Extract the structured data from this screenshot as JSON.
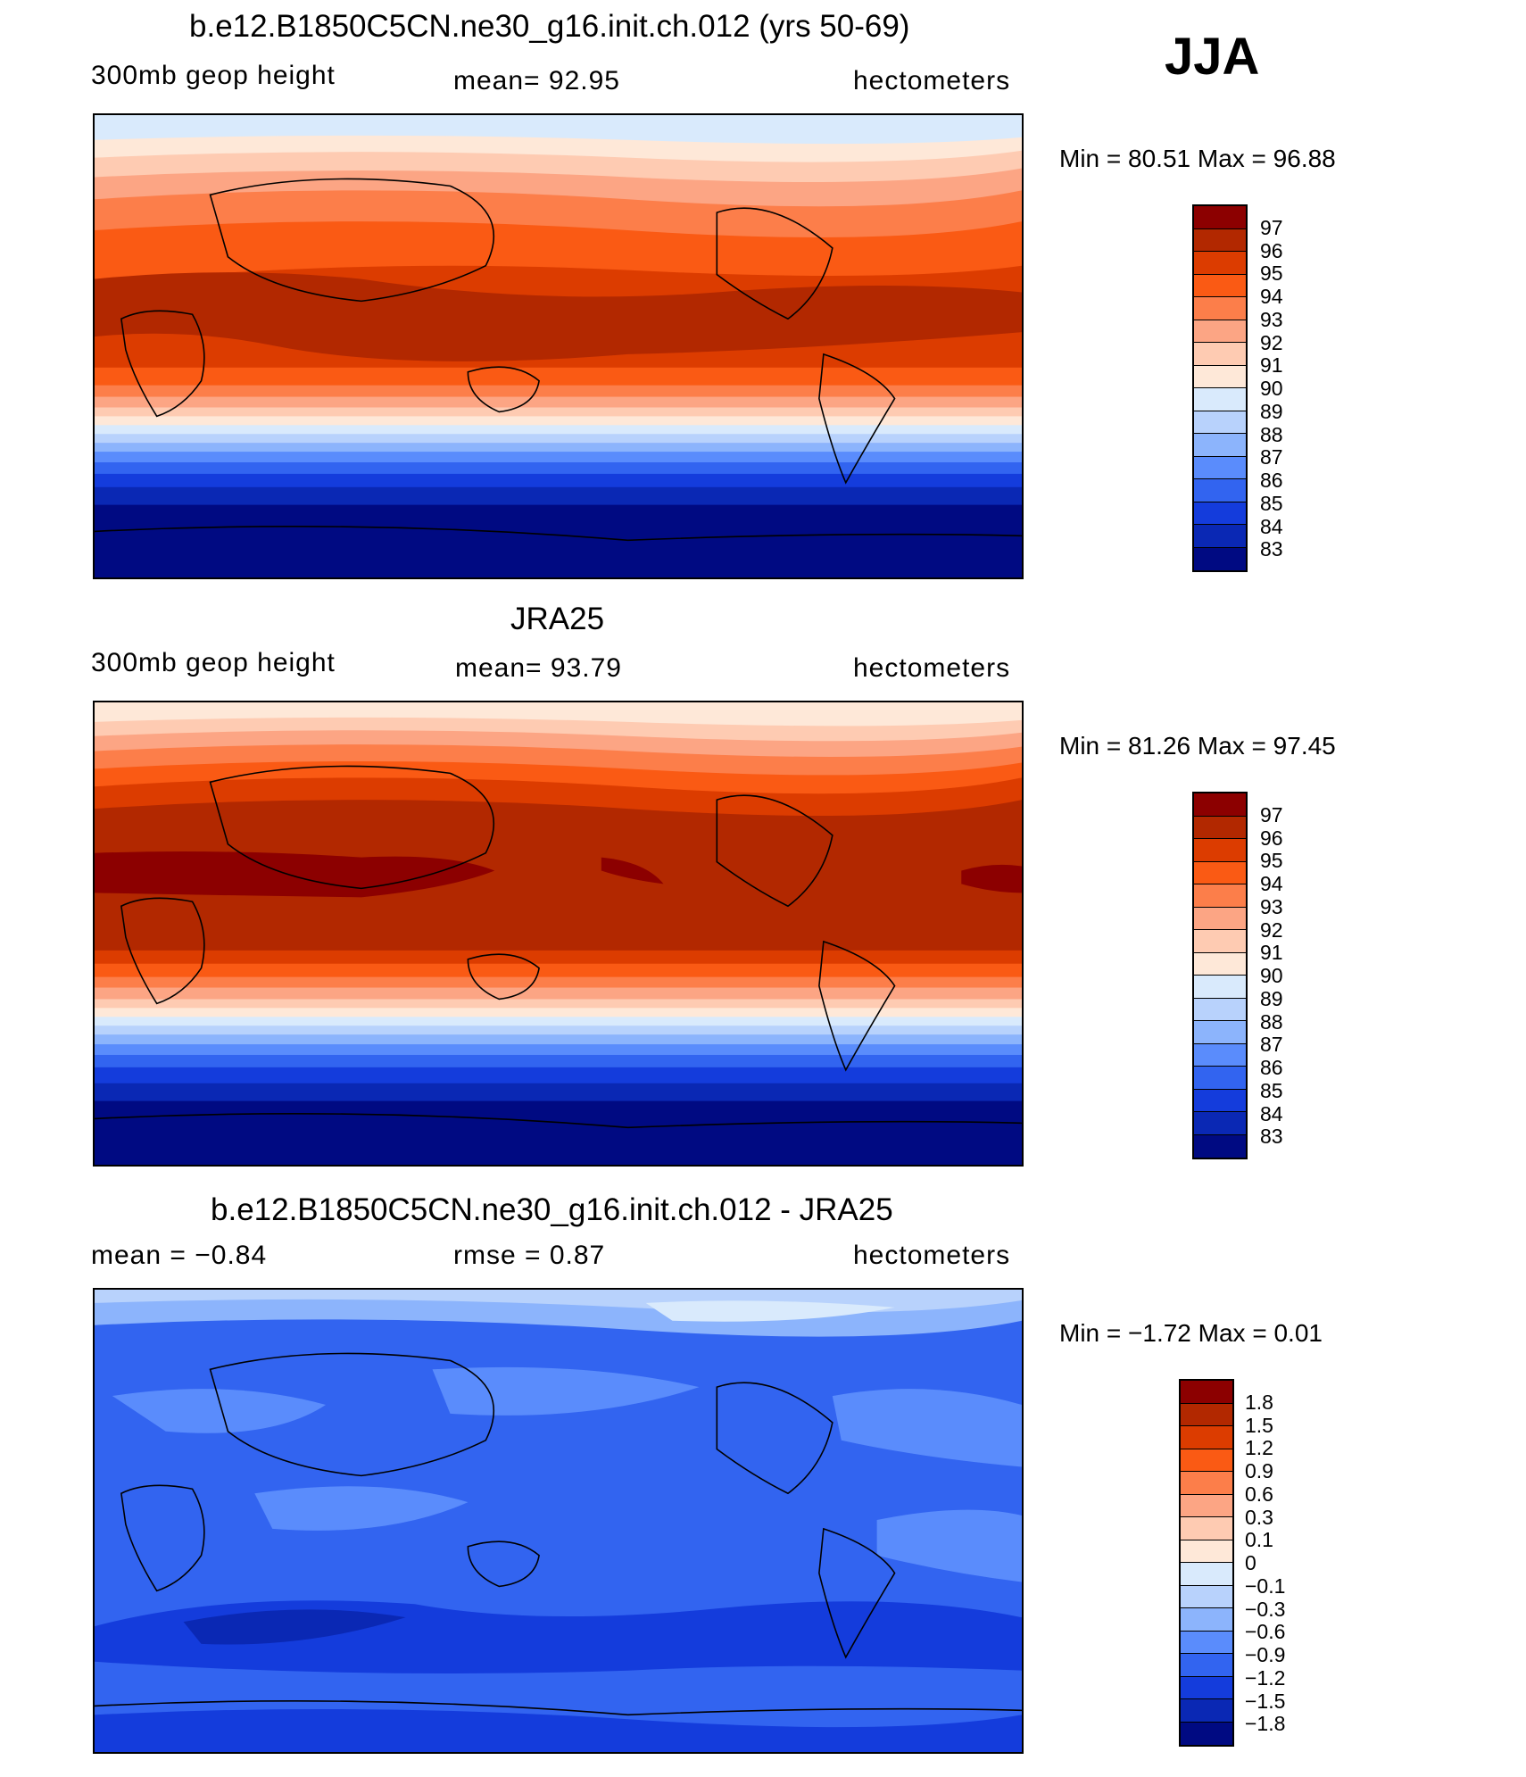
{
  "season": "JJA",
  "units": "hectometers",
  "panels": [
    {
      "title": "b.e12.B1850C5CN.ne30_g16.init.ch.012 (yrs 50-69)",
      "left_label": "300mb  geop  height",
      "center_label": "mean=   92.95",
      "right_label": "hectometers",
      "min_max": "Min  =    80.51  Max  =    96.88",
      "colorbar": {
        "labels": [
          "97",
          "96",
          "95",
          "94",
          "93",
          "92",
          "91",
          "90",
          "89",
          "88",
          "87",
          "86",
          "85",
          "84",
          "83"
        ],
        "colors": [
          "#8c0000",
          "#b22800",
          "#dc3c00",
          "#fa5a14",
          "#fc7e4a",
          "#fca584",
          "#fecbb2",
          "#fee8d8",
          "#d9eafc",
          "#b8d2fc",
          "#8cb4fc",
          "#5a8cfc",
          "#3264f0",
          "#143cdc",
          "#0a28b4",
          "#000a82"
        ]
      }
    },
    {
      "title": "JRA25",
      "left_label": "300mb  geop  height",
      "center_label": "mean=   93.79",
      "right_label": "hectometers",
      "min_max": "Min  =    81.26  Max  =    97.45",
      "colorbar": {
        "labels": [
          "97",
          "96",
          "95",
          "94",
          "93",
          "92",
          "91",
          "90",
          "89",
          "88",
          "87",
          "86",
          "85",
          "84",
          "83"
        ],
        "colors": [
          "#8c0000",
          "#b22800",
          "#dc3c00",
          "#fa5a14",
          "#fc7e4a",
          "#fca584",
          "#fecbb2",
          "#fee8d8",
          "#d9eafc",
          "#b8d2fc",
          "#8cb4fc",
          "#5a8cfc",
          "#3264f0",
          "#143cdc",
          "#0a28b4",
          "#000a82"
        ]
      }
    },
    {
      "title": "b.e12.B1850C5CN.ne30_g16.init.ch.012 - JRA25",
      "left_label": "mean  =    −0.84",
      "center_label": "rmse  =     0.87",
      "right_label": "hectometers",
      "min_max": "Min  =    −1.72  Max  =     0.01",
      "colorbar": {
        "labels": [
          "1.8",
          "1.5",
          "1.2",
          "0.9",
          "0.6",
          "0.3",
          "0.1",
          "0",
          "−0.1",
          "−0.3",
          "−0.6",
          "−0.9",
          "−1.2",
          "−1.5",
          "−1.8"
        ],
        "colors": [
          "#8c0000",
          "#b22800",
          "#dc3c00",
          "#fa5a14",
          "#fc7e4a",
          "#fca584",
          "#fecbb2",
          "#fee8d8",
          "#d9eafc",
          "#b8d2fc",
          "#8cb4fc",
          "#5a8cfc",
          "#3264f0",
          "#143cdc",
          "#0a28b4",
          "#000a82"
        ]
      }
    }
  ]
}
